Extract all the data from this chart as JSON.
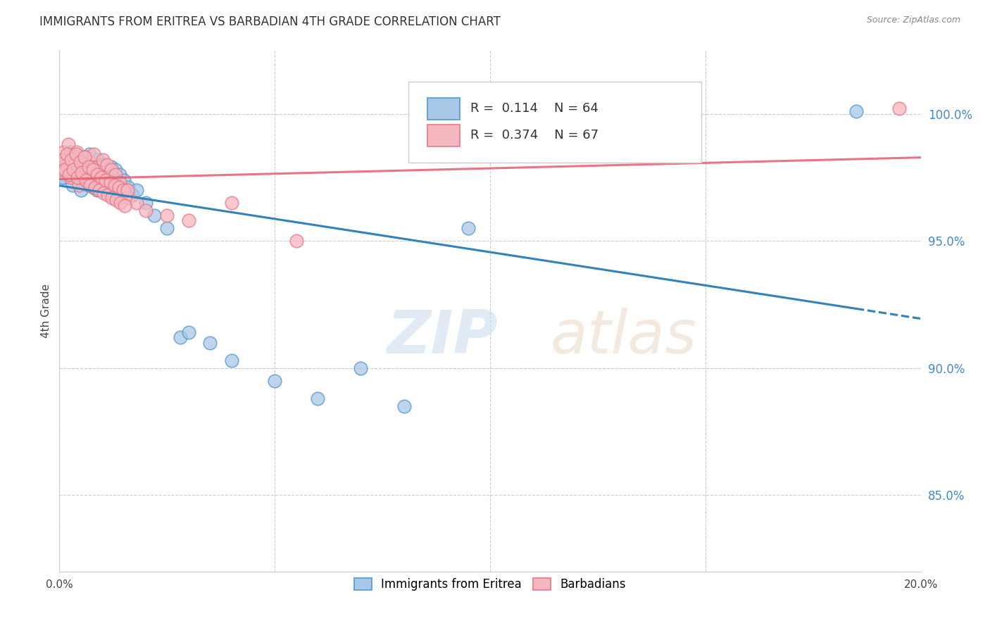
{
  "title": "IMMIGRANTS FROM ERITREA VS BARBADIAN 4TH GRADE CORRELATION CHART",
  "source": "Source: ZipAtlas.com",
  "ylabel": "4th Grade",
  "y_ticks": [
    85.0,
    90.0,
    95.0,
    100.0
  ],
  "y_tick_labels": [
    "85.0%",
    "90.0%",
    "95.0%",
    "100.0%"
  ],
  "xlim": [
    0.0,
    20.0
  ],
  "ylim": [
    82.0,
    102.5
  ],
  "R_blue": 0.114,
  "N_blue": 64,
  "R_pink": 0.374,
  "N_pink": 67,
  "legend_label_blue": "Immigrants from Eritrea",
  "legend_label_pink": "Barbadians",
  "blue_scatter_x": [
    0.1,
    0.15,
    0.2,
    0.25,
    0.3,
    0.35,
    0.4,
    0.45,
    0.5,
    0.55,
    0.6,
    0.65,
    0.7,
    0.75,
    0.8,
    0.85,
    0.9,
    0.95,
    1.0,
    1.05,
    1.1,
    1.15,
    1.2,
    1.25,
    1.3,
    1.35,
    1.4,
    1.5,
    1.6,
    1.7,
    1.8,
    2.0,
    2.2,
    2.5,
    2.8,
    3.0,
    3.5,
    4.0,
    5.0,
    6.0,
    7.0,
    8.0,
    9.5,
    11.0,
    0.05,
    0.08,
    0.12,
    0.18,
    0.22,
    0.28,
    0.32,
    0.38,
    0.42,
    0.48,
    0.52,
    0.58,
    0.62,
    0.68,
    0.72,
    0.78,
    0.82,
    0.88,
    0.92,
    18.5
  ],
  "blue_scatter_y": [
    97.5,
    98.2,
    97.8,
    98.5,
    97.2,
    98.0,
    97.5,
    98.3,
    97.0,
    97.8,
    98.1,
    97.6,
    98.4,
    97.3,
    98.0,
    97.7,
    98.2,
    97.5,
    98.0,
    97.3,
    97.8,
    97.1,
    97.9,
    97.4,
    97.8,
    97.2,
    97.6,
    97.4,
    97.1,
    96.8,
    97.0,
    96.5,
    96.0,
    95.5,
    91.2,
    91.4,
    91.0,
    90.3,
    89.5,
    88.8,
    90.0,
    88.5,
    95.5,
    100.2,
    98.0,
    97.5,
    98.2,
    97.9,
    98.4,
    97.6,
    98.1,
    97.7,
    98.3,
    97.5,
    97.9,
    97.4,
    97.8,
    97.2,
    97.6,
    97.1,
    97.5,
    97.0,
    97.4,
    100.1
  ],
  "pink_scatter_x": [
    0.05,
    0.1,
    0.15,
    0.2,
    0.25,
    0.3,
    0.35,
    0.4,
    0.45,
    0.5,
    0.55,
    0.6,
    0.65,
    0.7,
    0.75,
    0.8,
    0.85,
    0.9,
    0.95,
    1.0,
    1.05,
    1.1,
    1.15,
    1.2,
    1.25,
    1.3,
    1.4,
    1.5,
    1.6,
    1.8,
    2.0,
    2.5,
    3.0,
    4.0,
    5.5,
    0.08,
    0.12,
    0.18,
    0.22,
    0.28,
    0.32,
    0.38,
    0.42,
    0.48,
    0.52,
    0.58,
    0.62,
    0.68,
    0.72,
    0.78,
    0.82,
    0.88,
    0.92,
    0.98,
    1.02,
    1.08,
    1.12,
    1.18,
    1.22,
    1.28,
    1.32,
    1.38,
    1.42,
    1.48,
    1.52,
    1.58,
    19.5
  ],
  "pink_scatter_y": [
    97.8,
    98.5,
    98.0,
    98.8,
    97.5,
    98.2,
    97.8,
    98.5,
    97.2,
    98.0,
    97.7,
    98.3,
    97.5,
    98.1,
    97.6,
    98.4,
    97.2,
    97.9,
    97.5,
    98.2,
    97.4,
    98.0,
    97.3,
    97.8,
    97.1,
    97.6,
    97.3,
    97.0,
    96.7,
    96.5,
    96.2,
    96.0,
    95.8,
    96.5,
    95.0,
    98.2,
    97.8,
    98.4,
    97.6,
    98.2,
    97.8,
    98.4,
    97.5,
    98.1,
    97.7,
    98.3,
    97.4,
    97.9,
    97.2,
    97.8,
    97.1,
    97.6,
    97.0,
    97.5,
    96.9,
    97.4,
    96.8,
    97.3,
    96.7,
    97.2,
    96.6,
    97.1,
    96.5,
    97.0,
    96.4,
    97.0,
    100.2
  ],
  "watermark_zip": "ZIP",
  "watermark_atlas": "atlas",
  "background_color": "#ffffff",
  "grid_color": "#cccccc",
  "axis_label_color": "#4488cc",
  "title_color": "#333333"
}
